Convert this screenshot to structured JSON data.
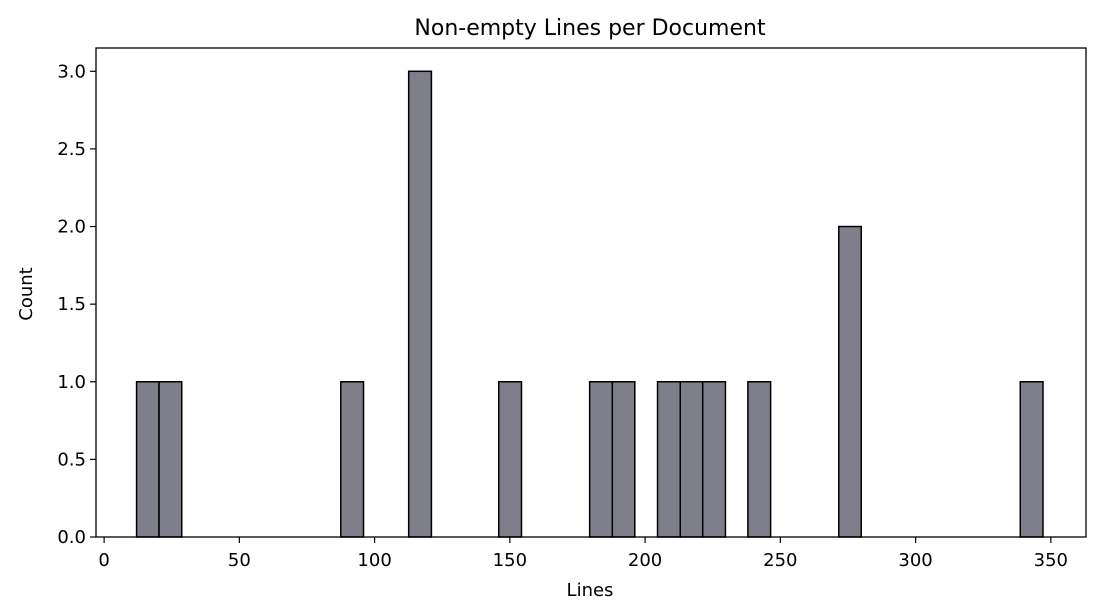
{
  "chart_data": {
    "type": "bar",
    "title": "Non-empty Lines per Document",
    "xlabel": "Lines",
    "ylabel": "Count",
    "xlim": [
      -3,
      363
    ],
    "ylim": [
      0,
      3.15
    ],
    "xticks": [
      0,
      50,
      100,
      150,
      200,
      250,
      300,
      350
    ],
    "xtick_labels": [
      "0",
      "50",
      "100",
      "150",
      "200",
      "250",
      "300",
      "350"
    ],
    "yticks": [
      0,
      0.5,
      1,
      1.5,
      2,
      2.5,
      3
    ],
    "ytick_labels": [
      "0.0",
      "0.5",
      "1.0",
      "1.5",
      "2.0",
      "2.5",
      "3.0"
    ],
    "bar_color": "#7f7f8b",
    "edge_color": "#000000",
    "grid": false,
    "bins": [
      {
        "x0": 12,
        "x1": 20.3,
        "count": 1
      },
      {
        "x0": 20.3,
        "x1": 28.7,
        "count": 1
      },
      {
        "x0": 87.5,
        "x1": 95.9,
        "count": 1
      },
      {
        "x0": 112.6,
        "x1": 121,
        "count": 3
      },
      {
        "x0": 145.9,
        "x1": 154.3,
        "count": 1
      },
      {
        "x0": 179.5,
        "x1": 187.9,
        "count": 1
      },
      {
        "x0": 187.9,
        "x1": 196.2,
        "count": 1
      },
      {
        "x0": 204.6,
        "x1": 213,
        "count": 1
      },
      {
        "x0": 213,
        "x1": 221.3,
        "count": 1
      },
      {
        "x0": 221.3,
        "x1": 229.7,
        "count": 1
      },
      {
        "x0": 238,
        "x1": 246.4,
        "count": 1
      },
      {
        "x0": 271.6,
        "x1": 279.9,
        "count": 2
      },
      {
        "x0": 338.7,
        "x1": 347.1,
        "count": 1
      }
    ]
  }
}
